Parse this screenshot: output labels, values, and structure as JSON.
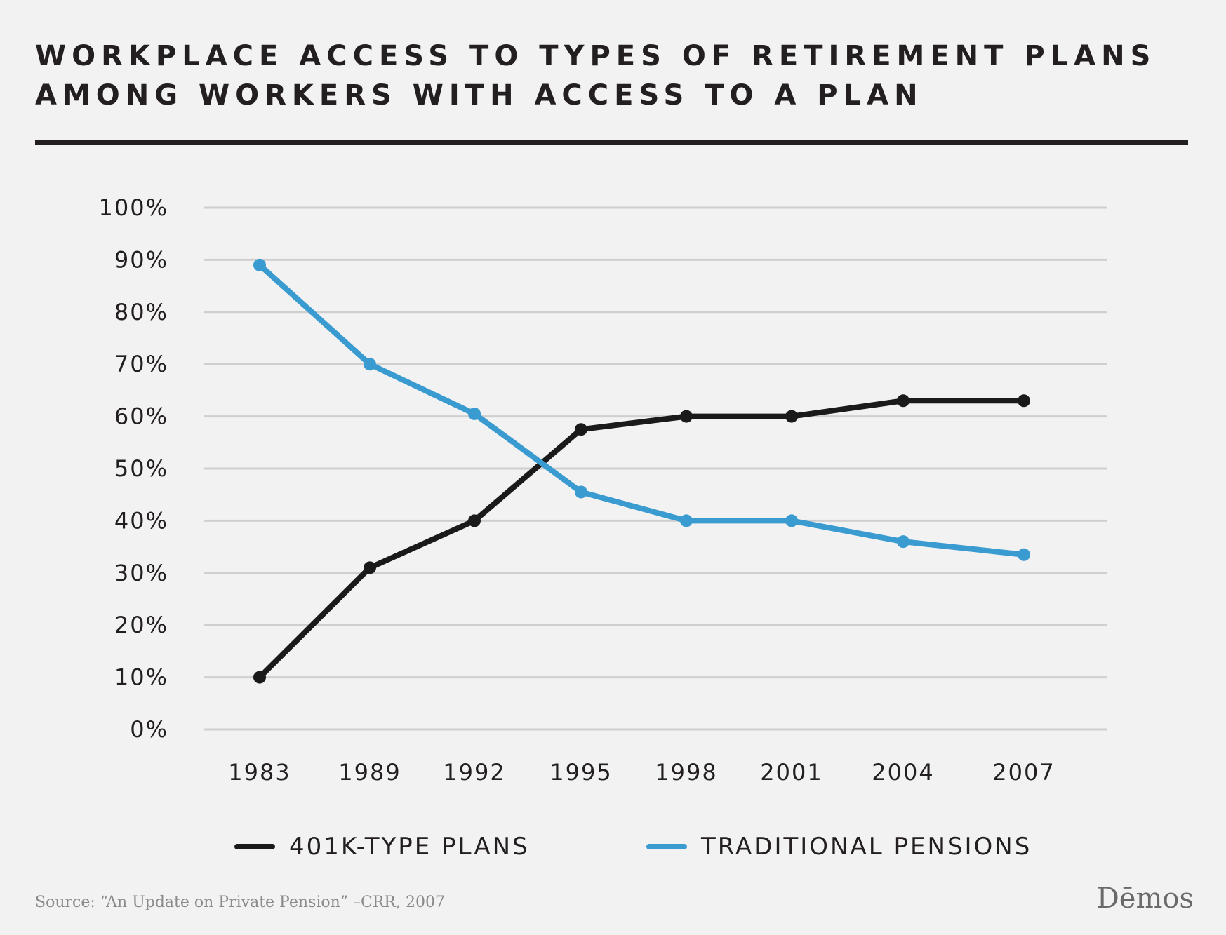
{
  "chart_data": {
    "type": "line",
    "title": [
      "WORKPLACE ACCESS TO TYPES OF RETIREMENT PLANS",
      "AMONG WORKERS WITH ACCESS TO A PLAN"
    ],
    "categories": [
      "1983",
      "1989",
      "1992",
      "1995",
      "1998",
      "2001",
      "2004",
      "2007"
    ],
    "y_ticks": [
      "0%",
      "10%",
      "20%",
      "30%",
      "40%",
      "50%",
      "60%",
      "70%",
      "80%",
      "90%",
      "100%"
    ],
    "ylim": [
      0,
      100
    ],
    "grid": true,
    "legend_position": "bottom",
    "series": [
      {
        "name": "401K-TYPE PLANS",
        "color": "#1a1a1a",
        "values": [
          10,
          31,
          40,
          57.5,
          60,
          60,
          63,
          63
        ]
      },
      {
        "name": "TRADITIONAL PENSIONS",
        "color": "#3a9bd0",
        "values": [
          89,
          70,
          60.5,
          45.5,
          40,
          40,
          36,
          33.5
        ]
      }
    ]
  },
  "footer": {
    "source": "Source: “An Update on Private Pension” –CRR, 2007",
    "brand": "Dēmos"
  }
}
